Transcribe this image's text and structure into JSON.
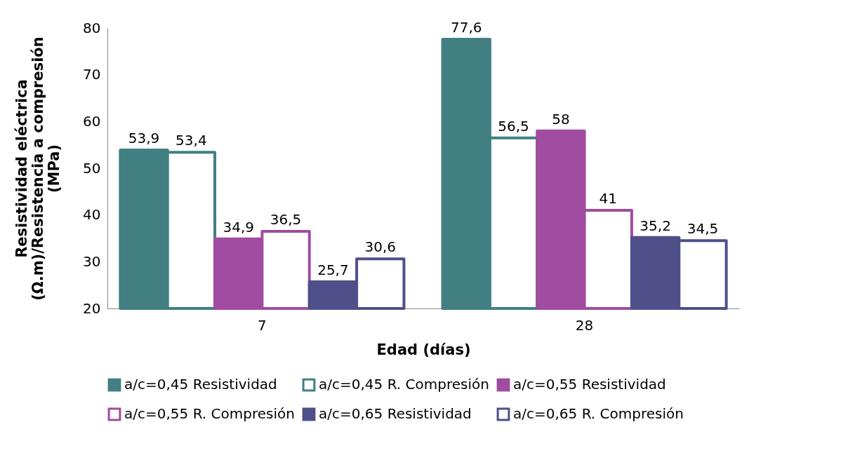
{
  "chart_data": {
    "type": "bar",
    "xlabel": "Edad (días)",
    "ylabel": "Resistividad eléctrica\n(Ω.m)/Resistencia a compresión\n(MPa)",
    "categories": [
      "7",
      "28"
    ],
    "series": [
      {
        "name": "a/c=0,45 Resistividad",
        "color": "#417f82",
        "values": [
          53.9,
          77.6
        ],
        "value_labels": [
          "53,9",
          "77,6"
        ]
      },
      {
        "name": "a/c=0,45 R. Compresión",
        "color": "#ffffff",
        "values": [
          53.4,
          56.5
        ],
        "value_labels": [
          "53,4",
          "56,5"
        ]
      },
      {
        "name": "a/c=0,55 Resistividad",
        "color": "#a04ca0",
        "values": [
          34.9,
          58
        ],
        "value_labels": [
          "34,9",
          "58"
        ]
      },
      {
        "name": "a/c=0,55 R. Compresión",
        "color": "#ffffff",
        "values": [
          36.5,
          41
        ],
        "value_labels": [
          "36,5",
          "41"
        ]
      },
      {
        "name": "a/c=0,65 Resistividad",
        "color": "#4f4f8a",
        "values": [
          25.7,
          35.2
        ],
        "value_labels": [
          "25,7",
          "35,2"
        ]
      },
      {
        "name": "a/c=0,65 R. Compresión",
        "color": "#ffffff",
        "values": [
          30.6,
          34.5
        ],
        "value_labels": [
          "30,6",
          "34,5"
        ]
      }
    ],
    "ylim": [
      20,
      80
    ],
    "yticks": [
      20,
      30,
      40,
      50,
      60,
      70,
      80
    ],
    "grid": false,
    "legend": "bottom"
  }
}
